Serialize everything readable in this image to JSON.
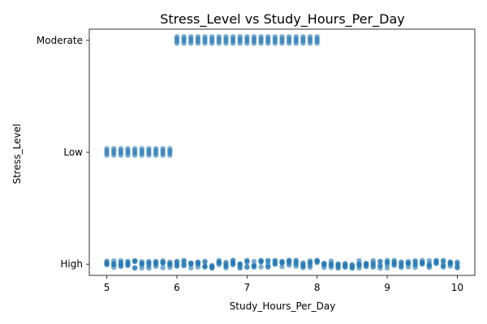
{
  "chart_data": {
    "type": "scatter",
    "title": "Stress_Level vs Study_Hours_Per_Day",
    "xlabel": "Study_Hours_Per_Day",
    "ylabel": "Stress_Level",
    "xlim": [
      4.75,
      10.25
    ],
    "x_ticks": [
      5,
      6,
      7,
      8,
      9,
      10
    ],
    "y_categories": [
      "High",
      "Low",
      "Moderate"
    ],
    "point_color": "#1f77b4",
    "point_alpha": 0.6,
    "grid": false,
    "series": [
      {
        "points": [
          {
            "y": "Low",
            "x_range": [
              5.0,
              5.9
            ],
            "x_step": 0.1
          },
          {
            "y": "Moderate",
            "x_range": [
              6.0,
              8.0
            ],
            "x_step": 0.1
          },
          {
            "y": "High",
            "x_range": [
              5.0,
              10.0
            ],
            "x_step": 0.1
          }
        ]
      }
    ]
  }
}
